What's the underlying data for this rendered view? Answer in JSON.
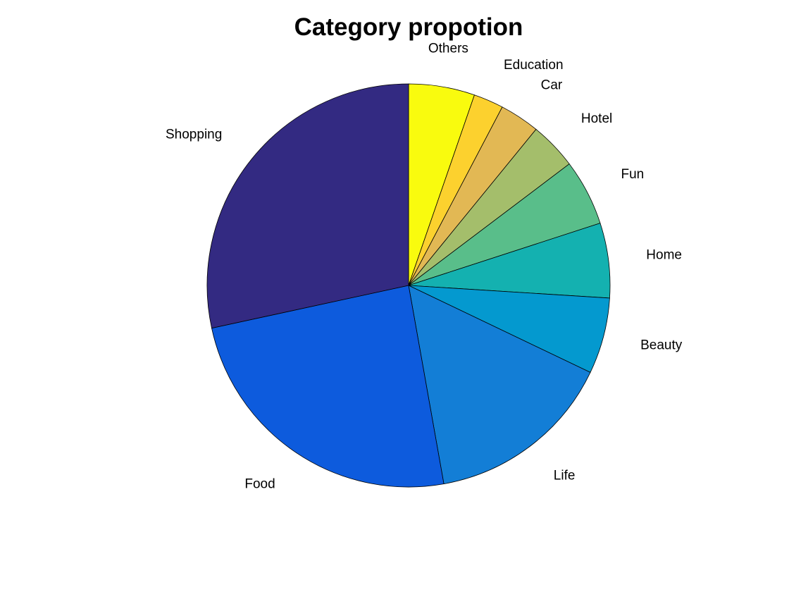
{
  "chart_data": {
    "type": "pie",
    "title": "Category propotion",
    "direction": "clockwise",
    "start": "12 o'clock",
    "slices": [
      {
        "label": "Others",
        "value": 5.3,
        "color": "#F9FB0E"
      },
      {
        "label": "Education",
        "value": 2.4,
        "color": "#FCD12E"
      },
      {
        "label": "Car",
        "value": 3.2,
        "color": "#E2B854"
      },
      {
        "label": "Hotel",
        "value": 3.8,
        "color": "#A4BE6B"
      },
      {
        "label": "Fun",
        "value": 5.3,
        "color": "#59BE8A"
      },
      {
        "label": "Home",
        "value": 6.0,
        "color": "#14B1B0"
      },
      {
        "label": "Beauty",
        "value": 6.1,
        "color": "#0499CF"
      },
      {
        "label": "Life",
        "value": 15.1,
        "color": "#137ED6"
      },
      {
        "label": "Food",
        "value": 24.4,
        "color": "#0D5BDD"
      },
      {
        "label": "Shopping",
        "value": 28.4,
        "color": "#332A82"
      }
    ]
  }
}
